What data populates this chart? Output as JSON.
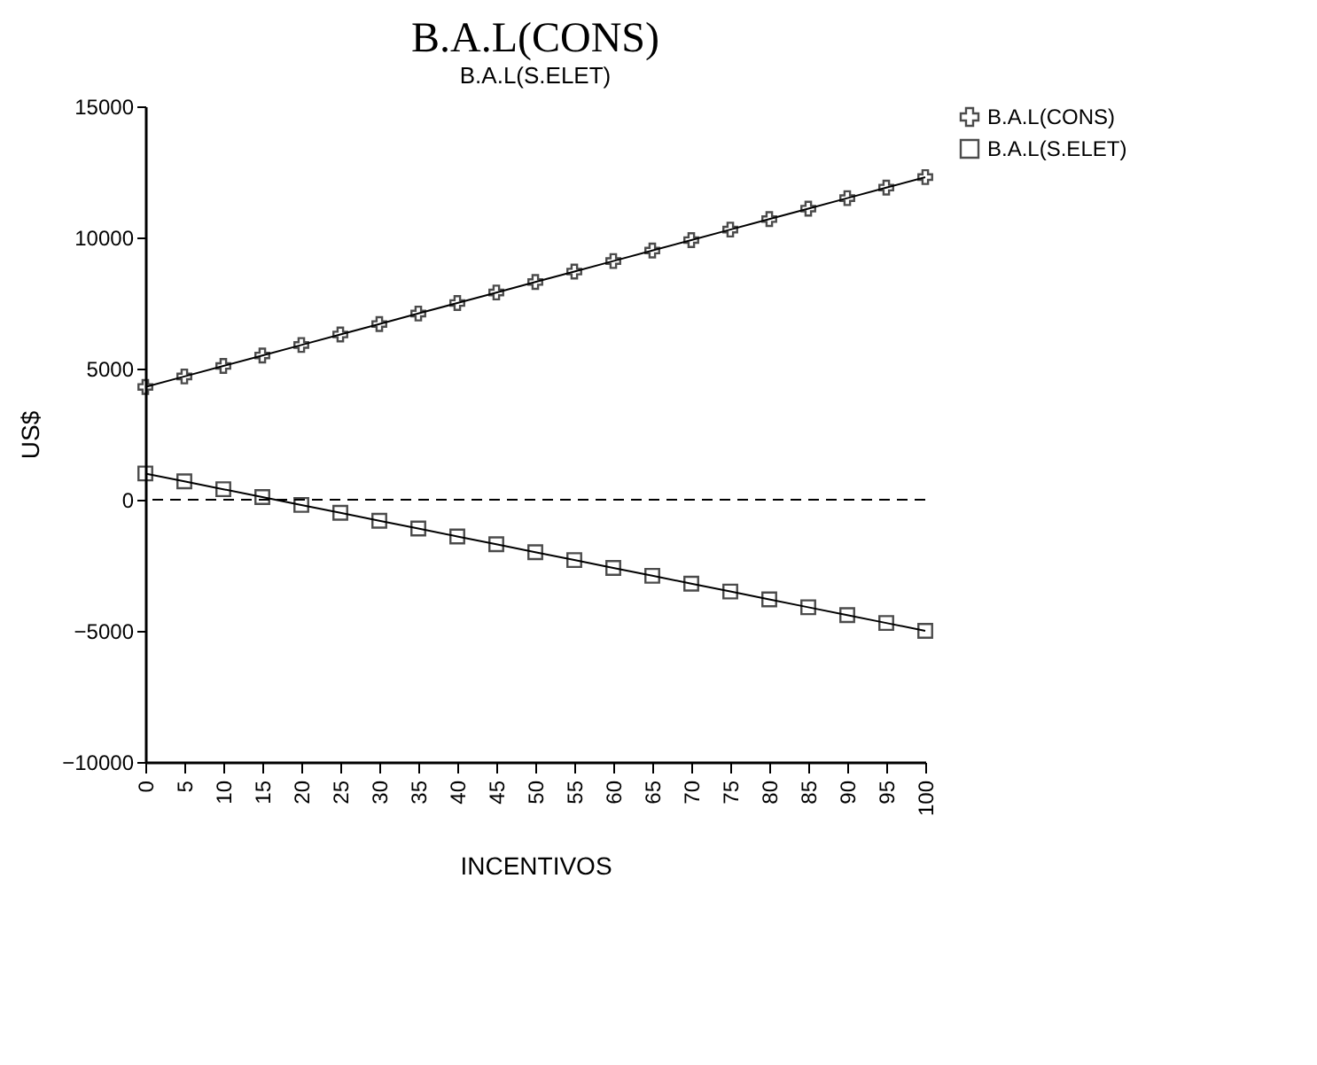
{
  "chart_data": {
    "type": "line",
    "title": "B.A.L(CONS)",
    "subtitle": "B.A.L(S.ELET)",
    "xlabel": "INCENTIVOS",
    "ylabel": "US$",
    "categories": [
      "0",
      "5",
      "10",
      "15",
      "20",
      "25",
      "30",
      "35",
      "40",
      "45",
      "50",
      "55",
      "60",
      "65",
      "70",
      "75",
      "80",
      "85",
      "90",
      "95",
      "100"
    ],
    "series": [
      {
        "name": "B.A.L(CONS)",
        "color": "#000000",
        "marker": "cross",
        "values": [
          4300,
          4700,
          5100,
          5500,
          5900,
          6300,
          6700,
          7100,
          7500,
          7900,
          8300,
          8700,
          9100,
          9500,
          9900,
          10300,
          10700,
          11100,
          11500,
          11900,
          12300
        ]
      },
      {
        "name": "B.A.L(S.ELET)",
        "color": "#000000",
        "marker": "square",
        "values": [
          1000,
          700,
          400,
          100,
          -200,
          -500,
          -800,
          -1100,
          -1400,
          -1700,
          -2000,
          -2300,
          -2600,
          -2900,
          -3200,
          -3500,
          -3800,
          -4100,
          -4400,
          -4700,
          -5000
        ]
      }
    ],
    "ylim": [
      -10000,
      15000
    ],
    "yticks": [
      -10000,
      -5000,
      0,
      5000,
      10000,
      15000
    ],
    "ref_lines": [
      {
        "axis": "y",
        "value": 0,
        "line_style": "dashed"
      }
    ],
    "legend": "top right",
    "grid": false
  }
}
